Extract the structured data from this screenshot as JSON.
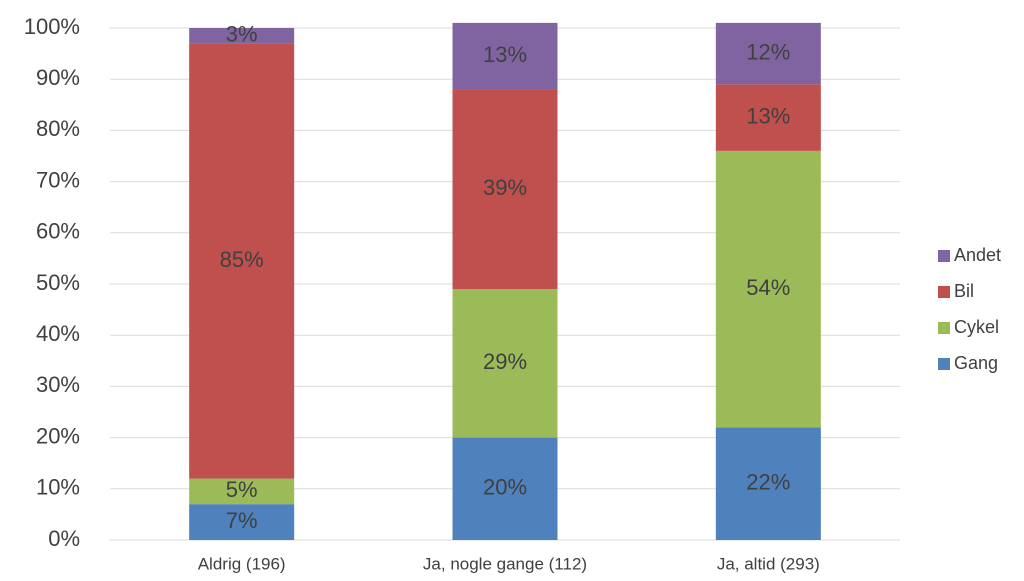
{
  "chart_data": {
    "type": "stacked_bar",
    "categories": [
      "Aldrig (196)",
      "Ja, nogle gange (112)",
      "Ja, altid (293)"
    ],
    "series": [
      {
        "name": "Gang",
        "color": "#4f81bd",
        "values": [
          7,
          20,
          22
        ],
        "value_labels": [
          "7%",
          "20%",
          "22%"
        ]
      },
      {
        "name": "Cykel",
        "color": "#9bbb59",
        "values": [
          5,
          29,
          54
        ],
        "value_labels": [
          "5%",
          "29%",
          "54%"
        ]
      },
      {
        "name": "Bil",
        "color": "#c0504d",
        "values": [
          85,
          39,
          13
        ],
        "value_labels": [
          "85%",
          "39%",
          "13%"
        ]
      },
      {
        "name": "Andet",
        "color": "#8064a2",
        "values": [
          3,
          13,
          12
        ],
        "value_labels": [
          "3%",
          "13%",
          "12%"
        ]
      }
    ],
    "ylim": [
      0,
      100
    ],
    "yticks": [
      {
        "value": 0,
        "label": "0%"
      },
      {
        "value": 10,
        "label": "10%"
      },
      {
        "value": 20,
        "label": "20%"
      },
      {
        "value": 30,
        "label": "30%"
      },
      {
        "value": 40,
        "label": "40%"
      },
      {
        "value": 50,
        "label": "50%"
      },
      {
        "value": 60,
        "label": "60%"
      },
      {
        "value": 70,
        "label": "70%"
      },
      {
        "value": 80,
        "label": "80%"
      },
      {
        "value": 90,
        "label": "90%"
      },
      {
        "value": 100,
        "label": "100%"
      }
    ],
    "grid": true,
    "legend": "right"
  }
}
